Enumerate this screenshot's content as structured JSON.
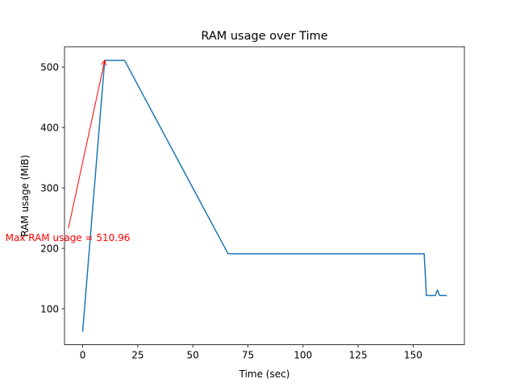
{
  "chart_data": {
    "type": "line",
    "title": "RAM usage over Time",
    "xlabel": "Time (sec)",
    "ylabel": "RAM usage (MiB)",
    "xlim": [
      -8.25,
      173.25
    ],
    "ylim": [
      40.6,
      533.4
    ],
    "xticks": [
      0,
      25,
      50,
      75,
      100,
      125,
      150
    ],
    "yticks": [
      100,
      200,
      300,
      400,
      500
    ],
    "grid": false,
    "series": [
      {
        "color": "#1f77b4",
        "x": [
          0,
          10,
          19,
          66,
          155,
          156,
          160,
          161,
          162,
          165
        ],
        "y": [
          63,
          510.96,
          510.96,
          191,
          191,
          122,
          122,
          131,
          122,
          122
        ]
      }
    ],
    "annotation": {
      "text": "Max RAM usage = 510.96",
      "color": "#ff0000",
      "point": {
        "x": 10,
        "y": 510.96
      },
      "text_anchor_data": {
        "x": -6.5,
        "y": 233
      }
    }
  }
}
